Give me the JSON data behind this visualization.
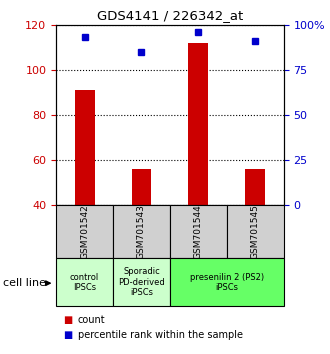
{
  "title": "GDS4141 / 226342_at",
  "samples": [
    "GSM701542",
    "GSM701543",
    "GSM701544",
    "GSM701545"
  ],
  "bar_values": [
    91,
    56,
    112,
    56
  ],
  "bar_bottom": 40,
  "percentile_values": [
    93,
    85,
    96,
    91
  ],
  "bar_color": "#cc0000",
  "percentile_color": "#0000cc",
  "ylim_left": [
    40,
    120
  ],
  "ylim_right": [
    0,
    100
  ],
  "yticks_left": [
    40,
    60,
    80,
    100,
    120
  ],
  "yticks_right": [
    0,
    25,
    50,
    75,
    100
  ],
  "ytick_labels_right": [
    "0",
    "25",
    "50",
    "75",
    "100%"
  ],
  "cell_line_label": "cell line",
  "legend_count": "count",
  "legend_percentile": "percentile rank within the sample",
  "tick_color_left": "#cc0000",
  "tick_color_right": "#0000cc",
  "group_info": [
    {
      "span": [
        0,
        1
      ],
      "label": "control\nIPSCs",
      "color": "#ccffcc"
    },
    {
      "span": [
        1,
        2
      ],
      "label": "Sporadic\nPD-derived\niPSCs",
      "color": "#ccffcc"
    },
    {
      "span": [
        2,
        4
      ],
      "label": "presenilin 2 (PS2)\niPSCs",
      "color": "#66ff66"
    }
  ],
  "bar_width": 0.35
}
